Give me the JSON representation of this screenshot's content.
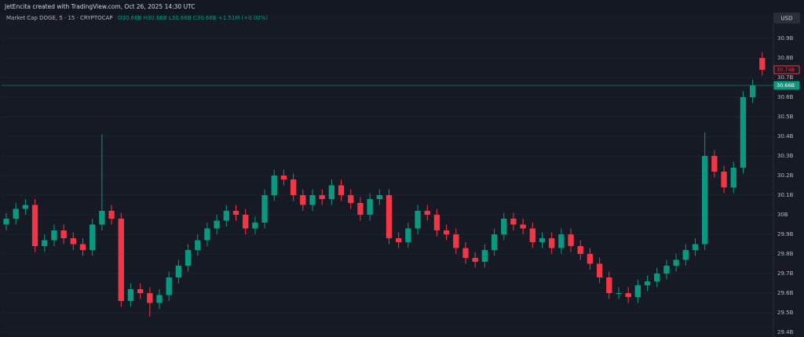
{
  "chart_data": {
    "type": "candlestick",
    "header": "JetEncita created with TradingView.com, Oct 26, 2025 14:30 UTC",
    "legend_symbol": "Market Cap DOGE, 5 · 15 · CRYPTOCAP",
    "legend_ohlc": "O30.66B H30.66B L30.66B C30.66B +1.51M (+0.00%)",
    "currency": "USD",
    "up_color": "#089981",
    "down_color": "#f23645",
    "grid": true,
    "ylim": [
      29.376,
      30.976
    ],
    "yticks": [
      {
        "value": 29.4,
        "label": "29.4B"
      },
      {
        "value": 29.5,
        "label": "29.5B"
      },
      {
        "value": 29.6,
        "label": "29.6B"
      },
      {
        "value": 29.7,
        "label": "29.7B"
      },
      {
        "value": 29.8,
        "label": "29.8B"
      },
      {
        "value": 29.9,
        "label": "29.9B"
      },
      {
        "value": 30,
        "label": "30B"
      },
      {
        "value": 30.1,
        "label": "30.1B"
      },
      {
        "value": 30.2,
        "label": "30.2B"
      },
      {
        "value": 30.3,
        "label": "30.3B"
      },
      {
        "value": 30.4,
        "label": "30.4B"
      },
      {
        "value": 30.5,
        "label": "30.5B"
      },
      {
        "value": 30.6,
        "label": "30.6B"
      },
      {
        "value": 30.7,
        "label": "30.7B"
      },
      {
        "value": 30.8,
        "label": "30.8B"
      },
      {
        "value": 30.9,
        "label": "30.9B"
      }
    ],
    "price_labels": [
      {
        "value": 30.74,
        "label": "30.74B",
        "color": "#f23645"
      },
      {
        "value": 30.66,
        "label": "30.66B",
        "color": "#089981"
      }
    ],
    "open": [
      29.95,
      29.98,
      30.03,
      30.05,
      29.84,
      29.87,
      29.92,
      29.88,
      29.85,
      29.82,
      29.95,
      30.02,
      29.98,
      29.56,
      29.62,
      29.6,
      29.55,
      29.59,
      29.68,
      29.74,
      29.82,
      29.87,
      29.93,
      29.97,
      30.02,
      30.0,
      29.93,
      29.96,
      30.1,
      30.2,
      30.18,
      30.1,
      30.05,
      30.1,
      30.08,
      30.15,
      30.1,
      30.06,
      30.0,
      30.08,
      30.1,
      29.88,
      29.86,
      29.93,
      30.02,
      30.0,
      29.92,
      29.9,
      29.83,
      29.78,
      29.76,
      29.82,
      29.9,
      29.98,
      29.95,
      29.93,
      29.86,
      29.88,
      29.83,
      29.9,
      29.84,
      29.8,
      29.75,
      29.68,
      29.6,
      29.6,
      29.58,
      29.64,
      29.66,
      29.7,
      29.74,
      29.77,
      29.82,
      29.85,
      30.3,
      30.22,
      30.14,
      30.24,
      30.6,
      30.8
    ],
    "high": [
      30.01,
      30.06,
      30.08,
      30.08,
      29.9,
      29.95,
      29.95,
      29.91,
      29.88,
      29.98,
      30.41,
      30.05,
      30.01,
      29.65,
      29.65,
      29.63,
      29.62,
      29.71,
      29.77,
      29.85,
      29.9,
      29.96,
      30.0,
      30.05,
      30.05,
      30.03,
      29.99,
      30.13,
      30.23,
      30.23,
      30.21,
      30.13,
      30.13,
      30.13,
      30.18,
      30.18,
      30.13,
      30.09,
      30.11,
      30.13,
      30.13,
      29.91,
      29.96,
      30.05,
      30.05,
      30.03,
      29.95,
      29.93,
      29.86,
      29.81,
      29.85,
      29.93,
      30.01,
      30.01,
      29.98,
      29.96,
      29.91,
      29.91,
      29.93,
      29.93,
      29.87,
      29.83,
      29.78,
      29.71,
      29.63,
      29.63,
      29.67,
      29.69,
      29.73,
      29.77,
      29.8,
      29.85,
      29.88,
      30.42,
      30.33,
      30.25,
      30.27,
      30.63,
      30.69,
      30.83
    ],
    "low": [
      29.92,
      29.95,
      30.0,
      29.81,
      29.81,
      29.84,
      29.85,
      29.82,
      29.79,
      29.79,
      29.92,
      29.95,
      29.53,
      29.53,
      29.57,
      29.48,
      29.52,
      29.56,
      29.65,
      29.71,
      29.79,
      29.84,
      29.9,
      29.94,
      29.97,
      29.9,
      29.9,
      29.93,
      30.07,
      30.15,
      30.07,
      30.02,
      30.02,
      30.05,
      30.05,
      30.07,
      30.03,
      29.97,
      29.97,
      30.05,
      29.85,
      29.83,
      29.83,
      29.9,
      29.97,
      29.89,
      29.87,
      29.8,
      29.75,
      29.73,
      29.73,
      29.79,
      29.87,
      29.92,
      29.9,
      29.83,
      29.83,
      29.8,
      29.8,
      29.81,
      29.77,
      29.72,
      29.65,
      29.57,
      29.57,
      29.55,
      29.55,
      29.61,
      29.63,
      29.67,
      29.71,
      29.74,
      29.79,
      29.82,
      30.19,
      30.11,
      30.11,
      30.21,
      30.57,
      30.71
    ],
    "close": [
      29.98,
      30.03,
      30.05,
      29.84,
      29.87,
      29.92,
      29.88,
      29.85,
      29.82,
      29.95,
      30.02,
      29.98,
      29.56,
      29.62,
      29.6,
      29.55,
      29.59,
      29.68,
      29.74,
      29.82,
      29.87,
      29.93,
      29.97,
      30.02,
      30.0,
      29.93,
      29.96,
      30.1,
      30.2,
      30.18,
      30.1,
      30.05,
      30.1,
      30.08,
      30.15,
      30.1,
      30.06,
      30.0,
      30.08,
      30.1,
      29.88,
      29.86,
      29.93,
      30.02,
      30.0,
      29.92,
      29.9,
      29.83,
      29.78,
      29.76,
      29.82,
      29.9,
      29.98,
      29.95,
      29.93,
      29.86,
      29.88,
      29.83,
      29.9,
      29.84,
      29.8,
      29.75,
      29.68,
      29.6,
      29.6,
      29.58,
      29.64,
      29.66,
      29.7,
      29.74,
      29.77,
      29.82,
      29.85,
      30.3,
      30.22,
      30.14,
      30.24,
      30.6,
      30.66,
      30.74
    ]
  }
}
